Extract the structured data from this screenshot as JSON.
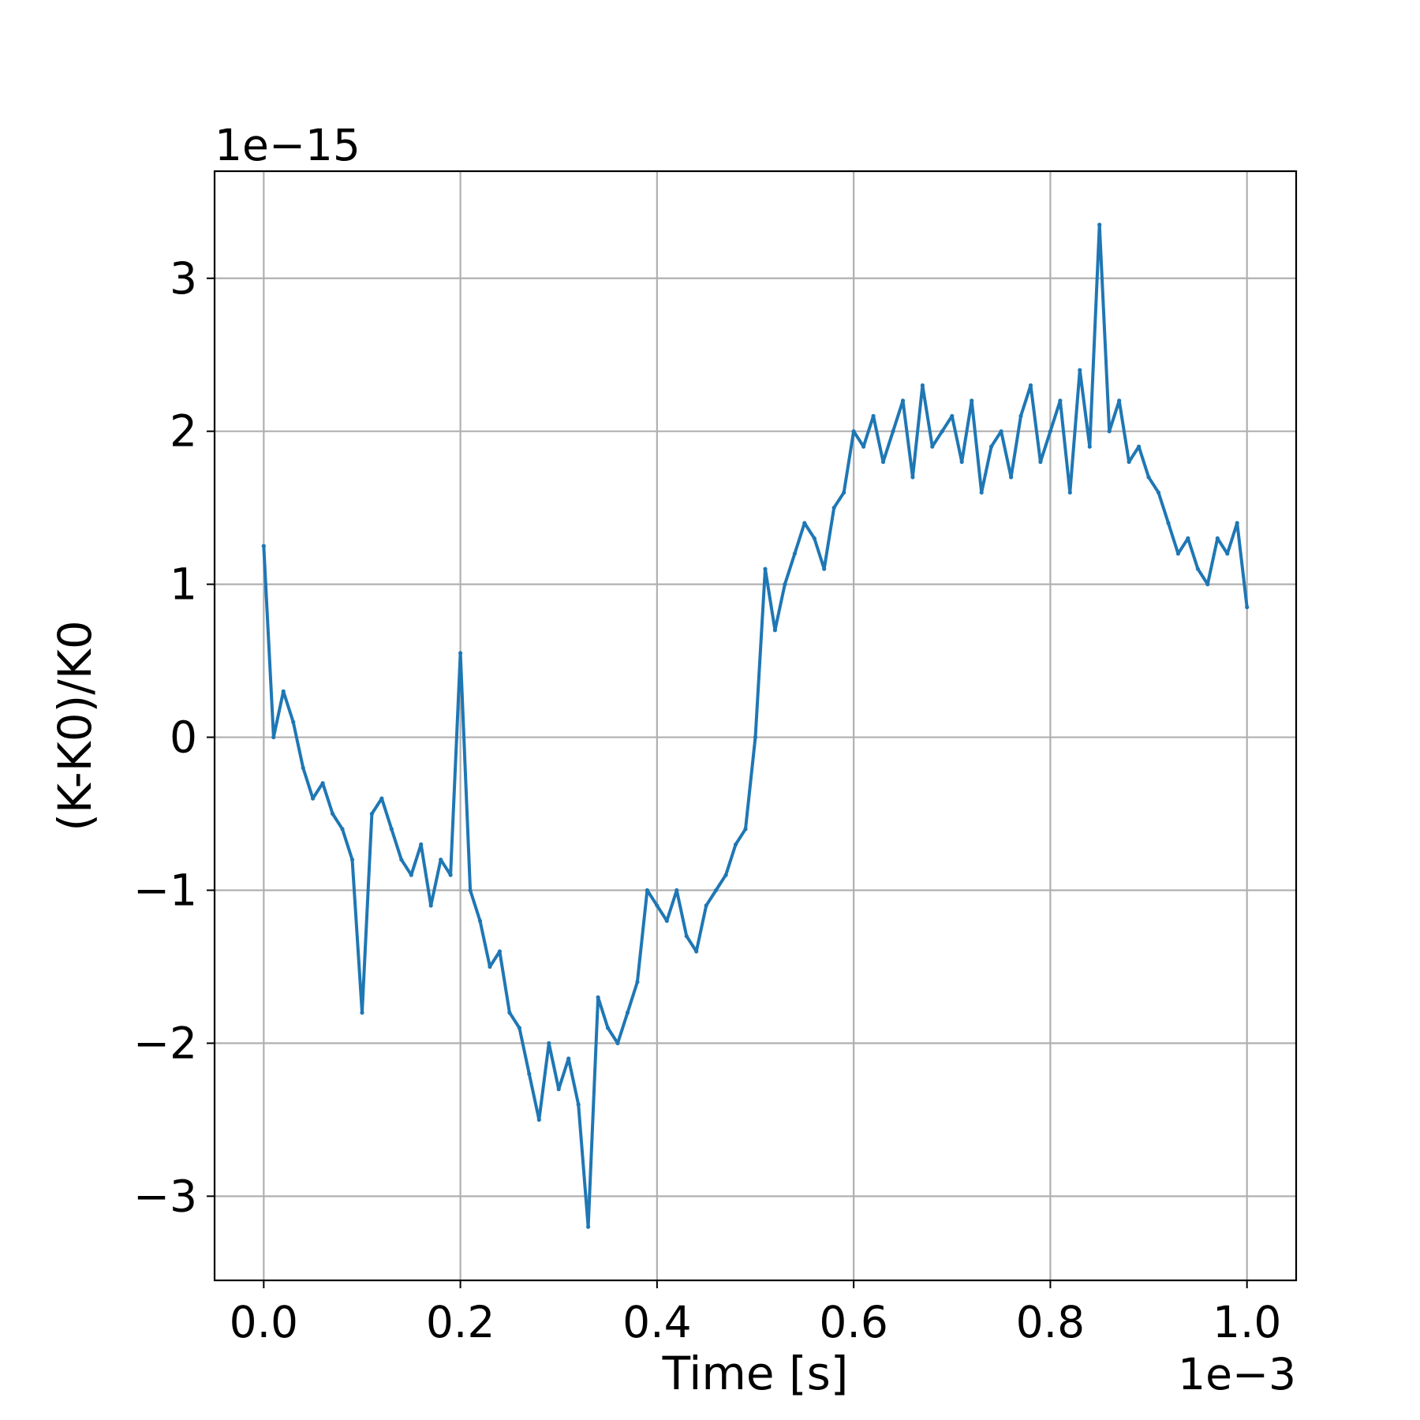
{
  "chart_data": {
    "type": "line",
    "title": "",
    "xlabel": "Time [s]",
    "ylabel": "(K-K0)/K0",
    "x_offset_label": "1e−3",
    "y_offset_label": "1e−15",
    "x_scale": 0.001,
    "y_scale": 1e-15,
    "xlim": [
      -0.05,
      1.05
    ],
    "ylim": [
      -3.55,
      3.7
    ],
    "x_ticks": [
      0.0,
      0.2,
      0.4,
      0.6,
      0.8,
      1.0
    ],
    "x_tick_labels": [
      "0.0",
      "0.2",
      "0.4",
      "0.6",
      "0.8",
      "1.0"
    ],
    "y_ticks": [
      -3,
      -2,
      -1,
      0,
      1,
      2,
      3
    ],
    "y_tick_labels": [
      "−3",
      "−2",
      "−1",
      "0",
      "1",
      "2",
      "3"
    ],
    "grid": true,
    "line_color": "#1f77b4",
    "series": [
      {
        "x": [
          0.0,
          0.01,
          0.02,
          0.03,
          0.04,
          0.05,
          0.06,
          0.07,
          0.08,
          0.09,
          0.1,
          0.11,
          0.12,
          0.13,
          0.14,
          0.15,
          0.16,
          0.17,
          0.18,
          0.19,
          0.2,
          0.21,
          0.22,
          0.23,
          0.24,
          0.25,
          0.26,
          0.27,
          0.28,
          0.29,
          0.3,
          0.31,
          0.32,
          0.33,
          0.34,
          0.35,
          0.36,
          0.37,
          0.38,
          0.39,
          0.4,
          0.41,
          0.42,
          0.43,
          0.44,
          0.45,
          0.46,
          0.47,
          0.48,
          0.49,
          0.5,
          0.51,
          0.52,
          0.53,
          0.54,
          0.55,
          0.56,
          0.57,
          0.58,
          0.59,
          0.6,
          0.61,
          0.62,
          0.63,
          0.64,
          0.65,
          0.66,
          0.67,
          0.68,
          0.69,
          0.7,
          0.71,
          0.72,
          0.73,
          0.74,
          0.75,
          0.76,
          0.77,
          0.78,
          0.79,
          0.8,
          0.81,
          0.82,
          0.83,
          0.84,
          0.85,
          0.86,
          0.87,
          0.88,
          0.89,
          0.9,
          0.91,
          0.92,
          0.93,
          0.94,
          0.95,
          0.96,
          0.97,
          0.98,
          0.99,
          1.0
        ],
        "values": [
          1.25,
          0.0,
          0.3,
          0.1,
          -0.2,
          -0.4,
          -0.3,
          -0.5,
          -0.6,
          -0.8,
          -1.8,
          -0.5,
          -0.4,
          -0.6,
          -0.8,
          -0.9,
          -0.7,
          -1.1,
          -0.8,
          -0.9,
          0.55,
          -1.0,
          -1.2,
          -1.5,
          -1.4,
          -1.8,
          -1.9,
          -2.2,
          -2.5,
          -2.0,
          -2.3,
          -2.1,
          -2.4,
          -3.2,
          -1.7,
          -1.9,
          -2.0,
          -1.8,
          -1.6,
          -1.0,
          -1.1,
          -1.2,
          -1.0,
          -1.3,
          -1.4,
          -1.1,
          -1.0,
          -0.9,
          -0.7,
          -0.6,
          0.0,
          1.1,
          0.7,
          1.0,
          1.2,
          1.4,
          1.3,
          1.1,
          1.5,
          1.6,
          2.0,
          1.9,
          2.1,
          1.8,
          2.0,
          2.2,
          1.7,
          2.3,
          1.9,
          2.0,
          2.1,
          1.8,
          2.2,
          1.6,
          1.9,
          2.0,
          1.7,
          2.1,
          2.3,
          1.8,
          2.0,
          2.2,
          1.6,
          2.4,
          1.9,
          3.35,
          2.0,
          2.2,
          1.8,
          1.9,
          1.7,
          1.6,
          1.4,
          1.2,
          1.3,
          1.1,
          1.0,
          1.3,
          1.2,
          1.4,
          0.85
        ]
      }
    ]
  }
}
